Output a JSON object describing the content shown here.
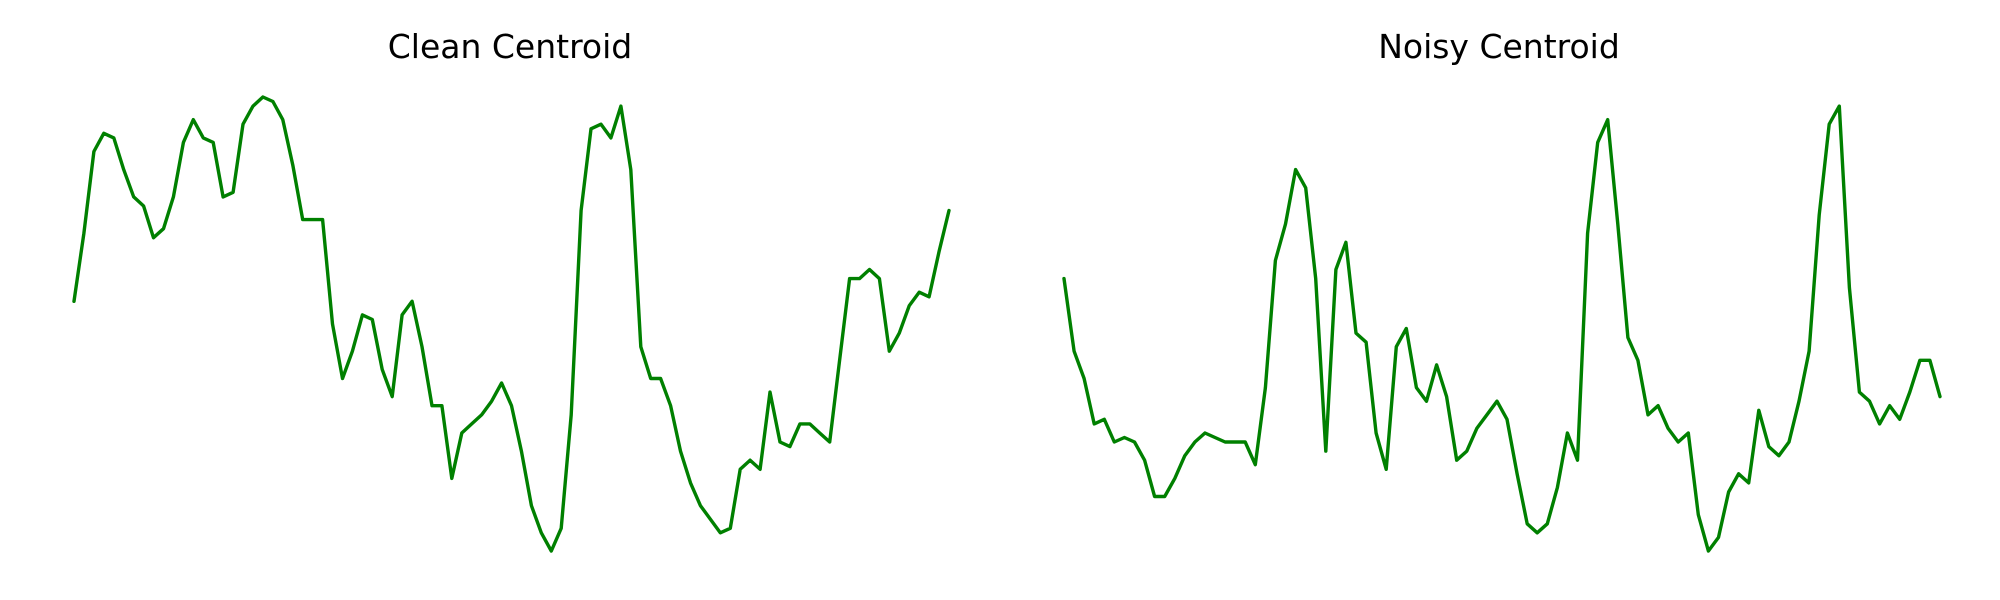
{
  "chart_data": [
    {
      "type": "line",
      "title": "Clean Centroid",
      "xlabel": "",
      "ylabel": "",
      "axes_visible": false,
      "grid": false,
      "legend": "none",
      "ylim": [
        0,
        1
      ],
      "series": [
        {
          "color": "#008000",
          "values": [
            0.55,
            0.7,
            0.88,
            0.92,
            0.91,
            0.84,
            0.78,
            0.76,
            0.69,
            0.71,
            0.78,
            0.9,
            0.95,
            0.91,
            0.9,
            0.78,
            0.79,
            0.94,
            0.98,
            1.0,
            0.99,
            0.95,
            0.85,
            0.73,
            0.73,
            0.73,
            0.5,
            0.38,
            0.44,
            0.52,
            0.51,
            0.4,
            0.34,
            0.52,
            0.55,
            0.45,
            0.32,
            0.32,
            0.16,
            0.26,
            0.28,
            0.3,
            0.33,
            0.37,
            0.32,
            0.22,
            0.1,
            0.04,
            0.0,
            0.05,
            0.3,
            0.75,
            0.93,
            0.94,
            0.91,
            0.98,
            0.84,
            0.45,
            0.38,
            0.38,
            0.32,
            0.22,
            0.15,
            0.1,
            0.07,
            0.04,
            0.05,
            0.18,
            0.2,
            0.18,
            0.35,
            0.24,
            0.23,
            0.28,
            0.28,
            0.26,
            0.24,
            0.42,
            0.6,
            0.6,
            0.62,
            0.6,
            0.44,
            0.48,
            0.54,
            0.57,
            0.56,
            0.66,
            0.75
          ]
        }
      ]
    },
    {
      "type": "line",
      "title": "Noisy Centroid",
      "xlabel": "",
      "ylabel": "",
      "axes_visible": false,
      "grid": false,
      "legend": "none",
      "ylim": [
        0,
        1
      ],
      "series": [
        {
          "color": "#008000",
          "values": [
            0.6,
            0.44,
            0.38,
            0.28,
            0.29,
            0.24,
            0.25,
            0.24,
            0.2,
            0.12,
            0.12,
            0.16,
            0.21,
            0.24,
            0.26,
            0.25,
            0.24,
            0.24,
            0.24,
            0.19,
            0.36,
            0.64,
            0.72,
            0.84,
            0.8,
            0.6,
            0.22,
            0.62,
            0.68,
            0.48,
            0.46,
            0.26,
            0.18,
            0.45,
            0.49,
            0.36,
            0.33,
            0.41,
            0.34,
            0.2,
            0.22,
            0.27,
            0.3,
            0.33,
            0.29,
            0.17,
            0.06,
            0.04,
            0.06,
            0.14,
            0.26,
            0.2,
            0.7,
            0.9,
            0.95,
            0.72,
            0.47,
            0.42,
            0.3,
            0.32,
            0.27,
            0.24,
            0.26,
            0.08,
            0.0,
            0.03,
            0.13,
            0.17,
            0.15,
            0.31,
            0.23,
            0.21,
            0.24,
            0.33,
            0.44,
            0.74,
            0.94,
            0.98,
            0.58,
            0.35,
            0.33,
            0.28,
            0.32,
            0.29,
            0.35,
            0.42,
            0.42,
            0.34
          ]
        }
      ]
    }
  ]
}
